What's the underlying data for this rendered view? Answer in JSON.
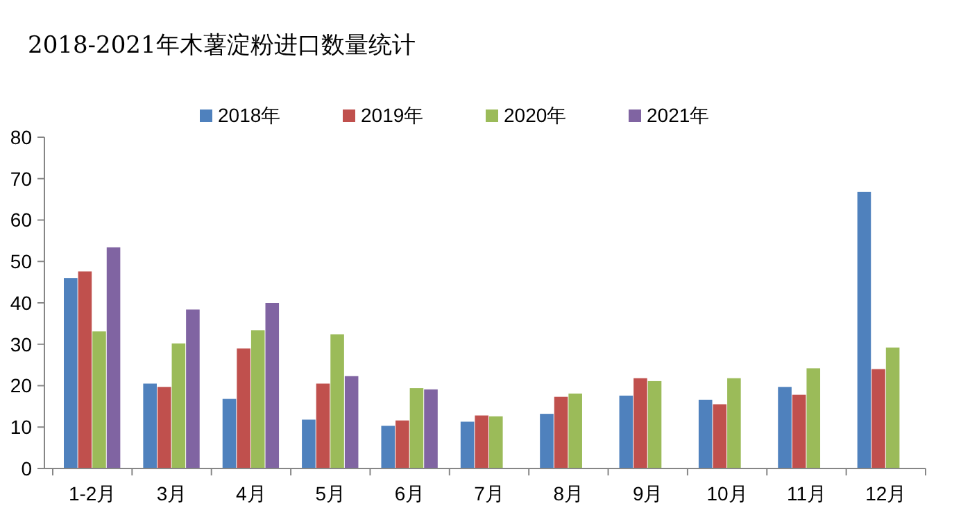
{
  "chart_data": {
    "type": "bar",
    "title": "2018-2021年木薯淀粉进口数量统计",
    "categories": [
      "1-2月",
      "3月",
      "4月",
      "5月",
      "6月",
      "7月",
      "8月",
      "9月",
      "10月",
      "11月",
      "12月"
    ],
    "series": [
      {
        "name": "2018年",
        "color": "#4f81bd",
        "values": [
          46,
          20.5,
          16.8,
          11.8,
          10.3,
          11.3,
          13.2,
          17.6,
          16.6,
          19.7,
          66.8
        ]
      },
      {
        "name": "2019年",
        "color": "#c0504d",
        "values": [
          47.6,
          19.7,
          29,
          20.5,
          11.6,
          12.8,
          17.3,
          21.8,
          15.5,
          17.8,
          24
        ]
      },
      {
        "name": "2020年",
        "color": "#9bbb59",
        "values": [
          33.1,
          30.2,
          33.4,
          32.4,
          19.4,
          12.6,
          18.1,
          21.1,
          21.8,
          24.2,
          29.2
        ]
      },
      {
        "name": "2021年",
        "color": "#8064a2",
        "values": [
          53.4,
          38.4,
          40,
          22.3,
          19.1,
          null,
          null,
          null,
          null,
          null,
          null
        ]
      }
    ],
    "ylim": [
      0,
      80
    ],
    "yticks": [
      0,
      10,
      20,
      30,
      40,
      50,
      60,
      70,
      80
    ],
    "grid": false,
    "legend": "top"
  }
}
